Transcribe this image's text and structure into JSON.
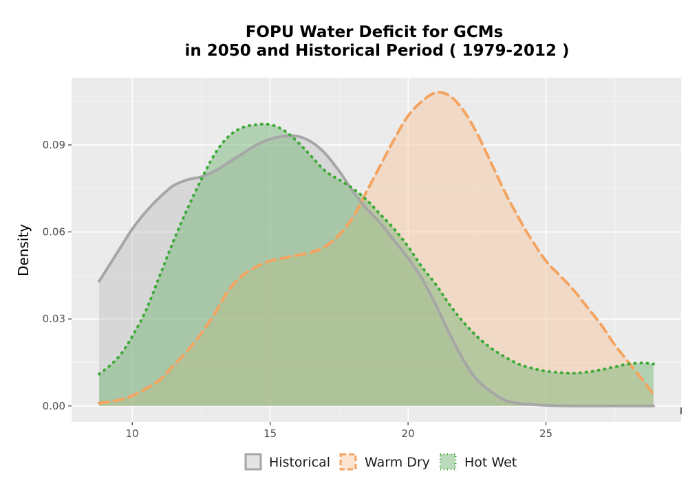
{
  "chart_data": {
    "type": "area",
    "title_line1": "FOPU  Water Deficit for GCMs",
    "title_line2": "in 2050 and Historical Period ( 1979-2012 )",
    "xlabel": "",
    "ylabel": "Density",
    "xlim": [
      7.8,
      29.9
    ],
    "ylim": [
      -0.0055,
      0.1132
    ],
    "x_ticks": [
      10,
      15,
      20,
      25
    ],
    "x_tick_labels": [
      "10",
      "15",
      "20",
      "25"
    ],
    "y_ticks": [
      0.0,
      0.03,
      0.06,
      0.09
    ],
    "y_tick_labels": [
      "0.00",
      "0.03",
      "0.06",
      "0.09"
    ],
    "grid": true,
    "legend_position": "bottom",
    "series": [
      {
        "name": "Historical",
        "line_style": "solid",
        "line_color": "#a6a6a6",
        "fill_color": "#b3b3b3",
        "fill_opacity": 0.35,
        "points": [
          [
            8.8,
            0.043
          ],
          [
            9.2,
            0.049
          ],
          [
            9.6,
            0.055
          ],
          [
            10.0,
            0.061
          ],
          [
            10.5,
            0.067
          ],
          [
            11.0,
            0.072
          ],
          [
            11.5,
            0.076
          ],
          [
            12.0,
            0.078
          ],
          [
            12.5,
            0.079
          ],
          [
            13.0,
            0.081
          ],
          [
            13.5,
            0.084
          ],
          [
            14.0,
            0.087
          ],
          [
            14.5,
            0.09
          ],
          [
            15.0,
            0.092
          ],
          [
            15.5,
            0.093
          ],
          [
            16.0,
            0.093
          ],
          [
            16.5,
            0.091
          ],
          [
            17.0,
            0.087
          ],
          [
            17.5,
            0.081
          ],
          [
            18.0,
            0.074
          ],
          [
            18.5,
            0.068
          ],
          [
            19.0,
            0.063
          ],
          [
            19.5,
            0.057
          ],
          [
            20.0,
            0.051
          ],
          [
            20.5,
            0.044
          ],
          [
            21.0,
            0.035
          ],
          [
            21.5,
            0.025
          ],
          [
            22.0,
            0.016
          ],
          [
            22.5,
            0.009
          ],
          [
            23.0,
            0.005
          ],
          [
            23.5,
            0.002
          ],
          [
            24.0,
            0.0009
          ],
          [
            25.0,
            0.0002
          ],
          [
            26.0,
            0.0
          ],
          [
            27.0,
            0.0
          ],
          [
            28.0,
            0.0
          ],
          [
            28.9,
            0.0
          ]
        ]
      },
      {
        "name": "Warm Dry",
        "line_style": "dashed",
        "line_color": "#f4a460",
        "fill_color": "#f6c49b",
        "fill_opacity": 0.45,
        "points": [
          [
            8.8,
            0.001
          ],
          [
            9.5,
            0.002
          ],
          [
            10.0,
            0.0035
          ],
          [
            10.5,
            0.006
          ],
          [
            11.0,
            0.009
          ],
          [
            11.5,
            0.014
          ],
          [
            12.0,
            0.019
          ],
          [
            12.5,
            0.025
          ],
          [
            13.0,
            0.032
          ],
          [
            13.5,
            0.04
          ],
          [
            14.0,
            0.045
          ],
          [
            14.5,
            0.048
          ],
          [
            15.0,
            0.05
          ],
          [
            15.5,
            0.051
          ],
          [
            16.0,
            0.052
          ],
          [
            16.5,
            0.053
          ],
          [
            17.0,
            0.055
          ],
          [
            17.5,
            0.059
          ],
          [
            18.0,
            0.065
          ],
          [
            18.5,
            0.074
          ],
          [
            19.0,
            0.083
          ],
          [
            19.5,
            0.092
          ],
          [
            20.0,
            0.1
          ],
          [
            20.5,
            0.105
          ],
          [
            21.0,
            0.108
          ],
          [
            21.5,
            0.107
          ],
          [
            22.0,
            0.102
          ],
          [
            22.5,
            0.094
          ],
          [
            23.0,
            0.084
          ],
          [
            23.5,
            0.074
          ],
          [
            24.0,
            0.065
          ],
          [
            24.5,
            0.057
          ],
          [
            25.0,
            0.05
          ],
          [
            25.5,
            0.045
          ],
          [
            26.0,
            0.04
          ],
          [
            26.5,
            0.034
          ],
          [
            27.0,
            0.028
          ],
          [
            27.5,
            0.021
          ],
          [
            28.0,
            0.015
          ],
          [
            28.5,
            0.009
          ],
          [
            28.9,
            0.004
          ]
        ]
      },
      {
        "name": "Hot Wet",
        "line_style": "dotted",
        "line_color": "#3aaa35",
        "fill_color": "#7ab87a",
        "fill_opacity": 0.5,
        "points": [
          [
            8.8,
            0.011
          ],
          [
            9.2,
            0.014
          ],
          [
            9.6,
            0.018
          ],
          [
            10.0,
            0.024
          ],
          [
            10.5,
            0.033
          ],
          [
            11.0,
            0.045
          ],
          [
            11.5,
            0.057
          ],
          [
            12.0,
            0.068
          ],
          [
            12.5,
            0.078
          ],
          [
            13.0,
            0.087
          ],
          [
            13.5,
            0.093
          ],
          [
            14.0,
            0.096
          ],
          [
            14.5,
            0.097
          ],
          [
            15.0,
            0.097
          ],
          [
            15.5,
            0.095
          ],
          [
            16.0,
            0.091
          ],
          [
            16.5,
            0.086
          ],
          [
            17.0,
            0.081
          ],
          [
            17.5,
            0.078
          ],
          [
            18.0,
            0.075
          ],
          [
            18.5,
            0.071
          ],
          [
            19.0,
            0.066
          ],
          [
            19.5,
            0.061
          ],
          [
            20.0,
            0.055
          ],
          [
            20.5,
            0.048
          ],
          [
            21.0,
            0.042
          ],
          [
            21.5,
            0.035
          ],
          [
            22.0,
            0.029
          ],
          [
            22.5,
            0.024
          ],
          [
            23.0,
            0.02
          ],
          [
            23.5,
            0.017
          ],
          [
            24.0,
            0.0145
          ],
          [
            24.5,
            0.013
          ],
          [
            25.0,
            0.012
          ],
          [
            25.5,
            0.0115
          ],
          [
            26.0,
            0.0113
          ],
          [
            26.5,
            0.0117
          ],
          [
            27.0,
            0.0125
          ],
          [
            27.5,
            0.0135
          ],
          [
            28.0,
            0.0145
          ],
          [
            28.5,
            0.0148
          ],
          [
            28.9,
            0.0145
          ]
        ]
      }
    ]
  }
}
